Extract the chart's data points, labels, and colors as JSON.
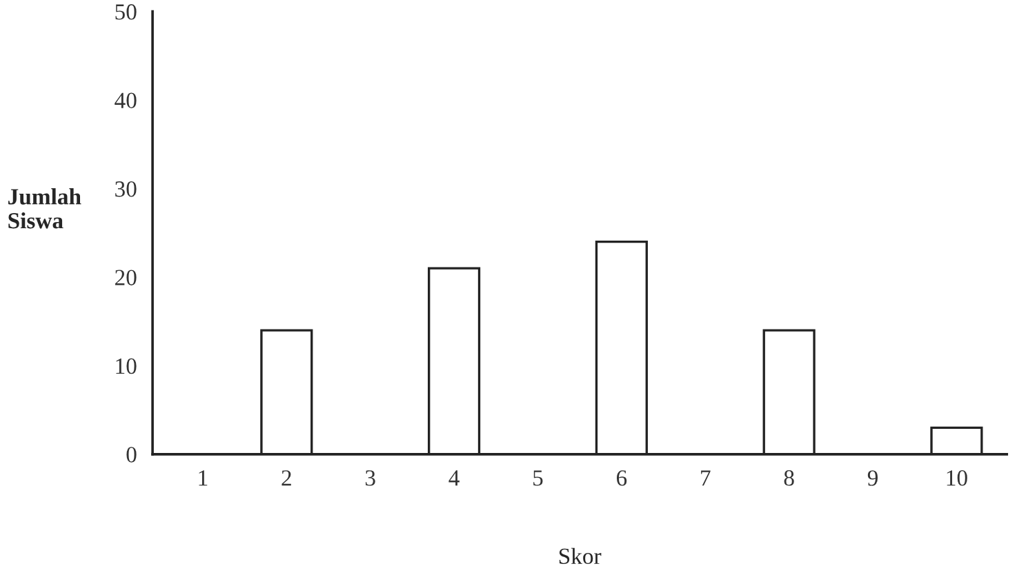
{
  "chart_data": {
    "type": "bar",
    "xlabel": "Skor",
    "ylabel": "Jumlah\nSiswa",
    "categories": [
      "1",
      "2",
      "3",
      "4",
      "5",
      "6",
      "7",
      "8",
      "9",
      "10"
    ],
    "values": [
      0,
      14,
      0,
      21,
      0,
      24,
      0,
      14,
      0,
      3
    ],
    "color": "#ffffff",
    "ylim": [
      0,
      50
    ],
    "yticks": [
      0,
      10,
      20,
      30,
      40,
      50
    ],
    "grid": false
  }
}
